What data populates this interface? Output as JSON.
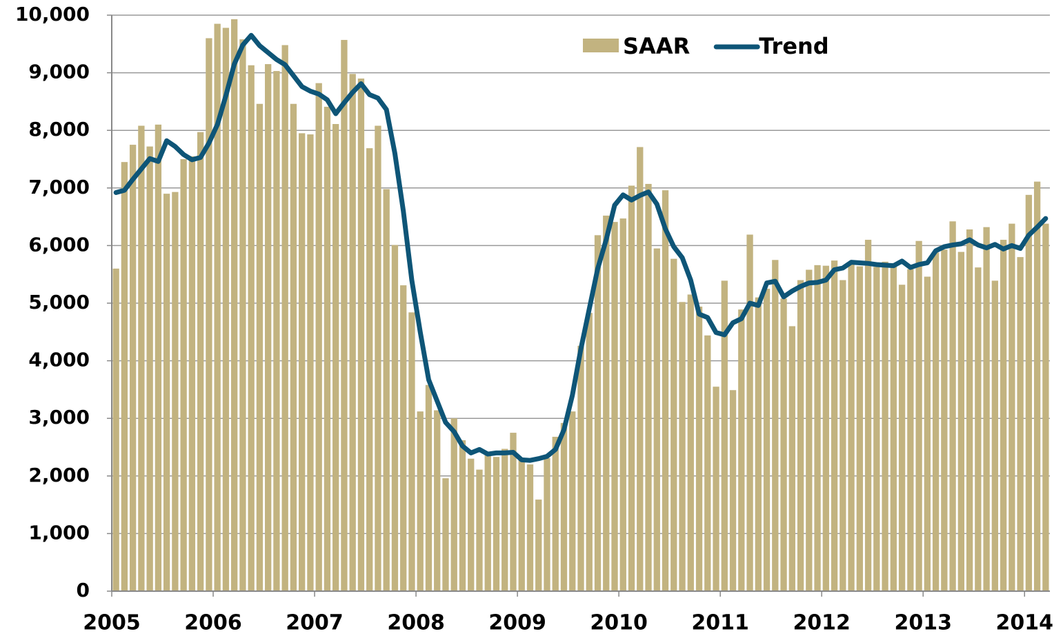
{
  "chart_data": {
    "type": "bar_line",
    "categories": [
      "2005",
      null,
      null,
      null,
      null,
      null,
      null,
      null,
      null,
      null,
      null,
      null,
      "2006",
      null,
      null,
      null,
      null,
      null,
      null,
      null,
      null,
      null,
      null,
      null,
      "2007",
      null,
      null,
      null,
      null,
      null,
      null,
      null,
      null,
      null,
      null,
      null,
      "2008",
      null,
      null,
      null,
      null,
      null,
      null,
      null,
      null,
      null,
      null,
      null,
      "2009",
      null,
      null,
      null,
      null,
      null,
      null,
      null,
      null,
      null,
      null,
      null,
      "2010",
      null,
      null,
      null,
      null,
      null,
      null,
      null,
      null,
      null,
      null,
      null,
      "2011",
      null,
      null,
      null,
      null,
      null,
      null,
      null,
      null,
      null,
      null,
      null,
      "2012",
      null,
      null,
      null,
      null,
      null,
      null,
      null,
      null,
      null,
      null,
      null,
      "2013",
      null,
      null,
      null,
      null,
      null,
      null,
      null,
      null,
      null,
      null,
      null,
      "2014",
      null,
      null
    ],
    "series": [
      {
        "name": "SAAR",
        "type": "bar",
        "color": "#c2b380",
        "values": [
          5600,
          7450,
          7750,
          8080,
          7720,
          8100,
          6900,
          6930,
          7500,
          7550,
          7970,
          9600,
          9850,
          9780,
          9930,
          9580,
          9130,
          8460,
          9150,
          9030,
          9480,
          8460,
          7950,
          7930,
          8820,
          8410,
          8110,
          9570,
          8980,
          8900,
          7690,
          8080,
          6980,
          6010,
          5310,
          4840,
          3120,
          3580,
          3140,
          1960,
          3000,
          2620,
          2300,
          2110,
          2400,
          2330,
          2470,
          2750,
          2300,
          2200,
          1590,
          2310,
          2680,
          2920,
          3120,
          4260,
          4830,
          6180,
          6520,
          6410,
          6470,
          7040,
          7710,
          7070,
          5950,
          6960,
          5770,
          5020,
          5150,
          4940,
          4440,
          3550,
          5390,
          3490,
          4890,
          6190,
          5100,
          5250,
          5750,
          5080,
          4600,
          5400,
          5580,
          5660,
          5650,
          5740,
          5400,
          5680,
          5640,
          6100,
          5630,
          5720,
          5680,
          5320,
          5590,
          6080,
          5460,
          5880,
          5930,
          6420,
          5890,
          6280,
          5620,
          6320,
          5390,
          6100,
          6380,
          5800,
          6880,
          7110,
          6380
        ]
      },
      {
        "name": "Trend",
        "type": "line",
        "color": "#0e5577",
        "values": [
          6920,
          6960,
          7150,
          7330,
          7510,
          7460,
          7820,
          7720,
          7580,
          7490,
          7530,
          7780,
          8100,
          8600,
          9150,
          9480,
          9650,
          9470,
          9350,
          9230,
          9140,
          8950,
          8760,
          8680,
          8630,
          8530,
          8290,
          8480,
          8660,
          8810,
          8620,
          8560,
          8360,
          7600,
          6600,
          5400,
          4500,
          3670,
          3300,
          2930,
          2770,
          2520,
          2400,
          2460,
          2380,
          2400,
          2400,
          2410,
          2280,
          2270,
          2300,
          2340,
          2460,
          2800,
          3400,
          4200,
          4900,
          5600,
          6100,
          6700,
          6880,
          6790,
          6870,
          6930,
          6720,
          6290,
          5980,
          5790,
          5400,
          4810,
          4750,
          4490,
          4450,
          4660,
          4730,
          5000,
          4960,
          5350,
          5380,
          5110,
          5210,
          5290,
          5350,
          5360,
          5400,
          5580,
          5610,
          5710,
          5700,
          5690,
          5670,
          5660,
          5650,
          5730,
          5620,
          5670,
          5700,
          5910,
          5980,
          6010,
          6030,
          6100,
          6010,
          5960,
          6020,
          5940,
          6000,
          5950,
          6180,
          6320,
          6470
        ]
      }
    ],
    "ylim": [
      0,
      10000
    ],
    "yticks": [
      0,
      {
        "value": 1000,
        "label": "1,000"
      },
      {
        "value": 2000,
        "label": "2,000"
      },
      {
        "value": 3000,
        "label": "3,000"
      },
      {
        "value": 4000,
        "label": "4,000"
      },
      {
        "value": 5000,
        "label": "5,000"
      },
      {
        "value": 6000,
        "label": "6,000"
      },
      {
        "value": 7000,
        "label": "7,000"
      },
      {
        "value": 8000,
        "label": "8,000"
      },
      {
        "value": 9000,
        "label": "9,000"
      },
      {
        "value": 10000,
        "label": "10,000"
      }
    ],
    "grid": true,
    "legend": "top"
  }
}
